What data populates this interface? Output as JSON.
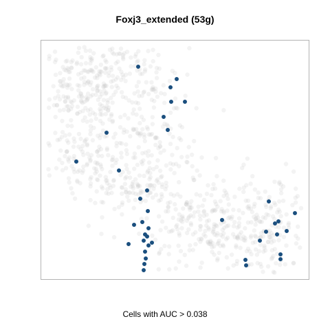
{
  "title": "Foxj3_extended (53g)",
  "caption": "Cells with AUC > 0.038",
  "colors": {
    "background_cells": "#c8c8c8",
    "highlighted_cells": "#1b4f7e",
    "frame": "#b3b3b3"
  },
  "chart_data": {
    "type": "scatter",
    "title": "Foxj3_extended (53g)",
    "xlabel": "",
    "ylabel": "",
    "axes_shown": false,
    "grid": false,
    "legend": "none",
    "series": [
      {
        "role": "cells above AUC threshold",
        "color": "#1b4f7e",
        "points": [
          [
            201,
            97
          ],
          [
            257,
            115
          ],
          [
            248,
            127
          ],
          [
            249,
            148
          ],
          [
            269,
            148
          ],
          [
            238,
            170
          ],
          [
            244,
            189
          ],
          [
            155,
            193
          ],
          [
            111,
            235
          ],
          [
            173,
            248
          ],
          [
            214,
            277
          ],
          [
            204,
            289
          ],
          [
            215,
            307
          ],
          [
            207,
            323
          ],
          [
            195,
            327
          ],
          [
            216,
            332
          ],
          [
            211,
            341
          ],
          [
            214,
            344
          ],
          [
            221,
            353
          ],
          [
            209,
            350
          ],
          [
            187,
            355
          ],
          [
            216,
            357
          ],
          [
            211,
            366
          ],
          [
            212,
            376
          ],
          [
            210,
            384
          ],
          [
            209,
            393
          ],
          [
            391,
            293
          ],
          [
            429,
            310
          ],
          [
            400,
            325
          ],
          [
            405,
            322
          ],
          [
            323,
            320
          ],
          [
            387,
            337
          ],
          [
            417,
            336
          ],
          [
            403,
            341
          ],
          [
            378,
            350
          ],
          [
            408,
            370
          ],
          [
            408,
            377
          ],
          [
            358,
            386
          ],
          [
            357,
            378
          ]
        ]
      }
    ]
  }
}
